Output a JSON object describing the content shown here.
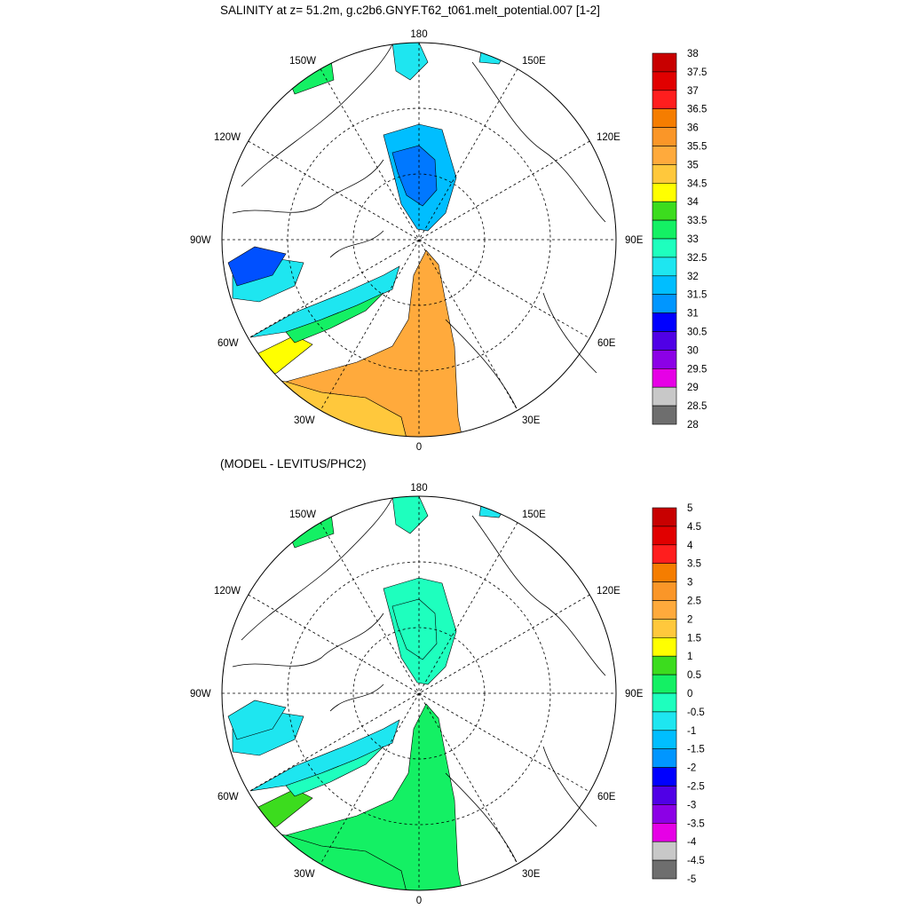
{
  "panels": [
    {
      "title": "SALINITY at z=  51.2m, g.c2b6.GNYF.T62_t061.melt_potential.007 [1-2]",
      "longitude_labels": [
        "180",
        "150E",
        "120E",
        "90E",
        "60E",
        "30E",
        "0",
        "30W",
        "60W",
        "90W",
        "120W",
        "150W"
      ],
      "colorbar": {
        "levels": [
          "38",
          "37.5",
          "37",
          "36.5",
          "36",
          "35.5",
          "35",
          "34.5",
          "34",
          "33.5",
          "33",
          "32.5",
          "32",
          "31.5",
          "31",
          "30.5",
          "30",
          "29.5",
          "29",
          "28.5",
          "28"
        ],
        "colors": [
          "#c80000",
          "#e10000",
          "#ff1e1e",
          "#f57d00",
          "#fa9628",
          "#ffaa3c",
          "#ffc83c",
          "#ffff00",
          "#3cdc1e",
          "#14f064",
          "#1effbe",
          "#1ee6f0",
          "#00beff",
          "#0096ff",
          "#0000ff",
          "#5000e6",
          "#8c00e6",
          "#e600e6",
          "#c8c8c8",
          "#6e6e6e"
        ]
      },
      "fill_colors": {
        "arctic": "#00beff",
        "core": "#0078ff",
        "deep": "#0050ff",
        "atl": "#ffaa3c",
        "atl2": "#ffc83c",
        "lab": "#ffff00",
        "coast": "#1ee6f0",
        "shelf": "#14f064"
      }
    },
    {
      "title": "(MODEL - LEVITUS/PHC2)",
      "longitude_labels": [
        "180",
        "150E",
        "120E",
        "90E",
        "60E",
        "30E",
        "0",
        "30W",
        "60W",
        "90W",
        "120W",
        "150W"
      ],
      "colorbar": {
        "levels": [
          "5",
          "4.5",
          "4",
          "3.5",
          "3",
          "2.5",
          "2",
          "1.5",
          "1",
          "0.5",
          "0",
          "-0.5",
          "-1",
          "-1.5",
          "-2",
          "-2.5",
          "-3",
          "-3.5",
          "-4",
          "-4.5",
          "-5"
        ],
        "colors": [
          "#c80000",
          "#e10000",
          "#ff1e1e",
          "#f57d00",
          "#fa9628",
          "#ffaa3c",
          "#ffc83c",
          "#ffff00",
          "#3cdc1e",
          "#14f064",
          "#1effbe",
          "#1ee6f0",
          "#00beff",
          "#0096ff",
          "#0000ff",
          "#5000e6",
          "#8c00e6",
          "#e600e6",
          "#c8c8c8",
          "#6e6e6e"
        ]
      },
      "fill_colors": {
        "arctic": "#1effbe",
        "core": "#1effbe",
        "deep": "#1ee6f0",
        "atl": "#14f064",
        "atl2": "#14f064",
        "lab": "#3cdc1e",
        "coast": "#1ee6f0",
        "shelf": "#1effbe"
      }
    }
  ]
}
